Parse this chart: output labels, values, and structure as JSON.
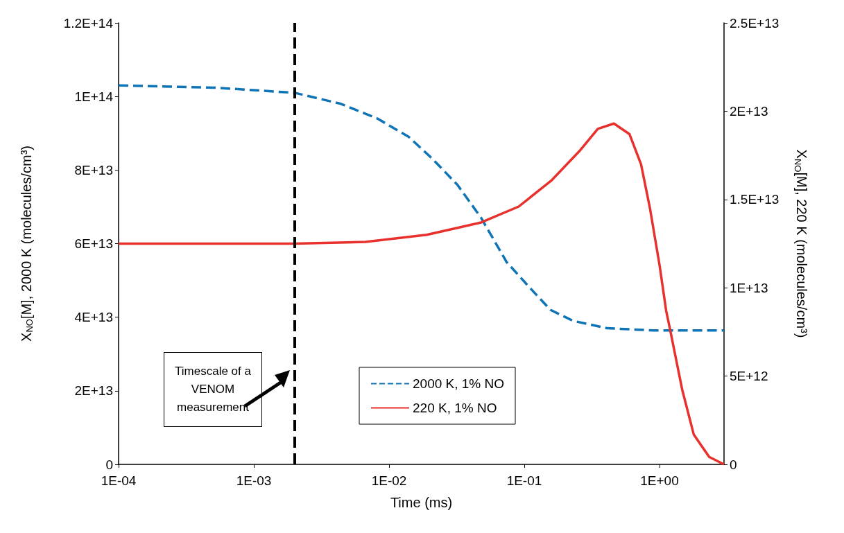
{
  "chart_data": {
    "type": "line",
    "xlabel": "Time (ms)",
    "ylabel": "X$_{NO}$[M], 2000 K (molecules/cm³)",
    "y2label": "X$_{NO}$[M], 220 K (molecules/cm³)",
    "log": "x",
    "grid": false,
    "legend": "bottom",
    "marker": "none",
    "xlim": [
      0.0001,
      3
    ],
    "xticks": [
      {
        "value": 0.0001,
        "label": "1E-04"
      },
      {
        "value": 0.001,
        "label": "1E-03"
      },
      {
        "value": 0.01,
        "label": "1E-02"
      },
      {
        "value": 0.1,
        "label": "1E-01"
      },
      {
        "value": 1,
        "label": "1E+00"
      }
    ],
    "ylim": [
      0,
      120000000000000.0
    ],
    "yticks": [
      0,
      {
        "value": 20000000000000.0,
        "label": "2E+13"
      },
      {
        "value": 40000000000000.0,
        "label": "4E+13"
      },
      {
        "value": 60000000000000.0,
        "label": "6E+13"
      },
      {
        "value": 80000000000000.0,
        "label": "8E+13"
      },
      {
        "value": 100000000000000.0,
        "label": "1E+14"
      },
      {
        "value": 120000000000000.0,
        "label": "1.2E+14"
      }
    ],
    "y2lim": [
      0,
      25000000000000.0
    ],
    "y2ticks": [
      0,
      {
        "value": 5000000000000.0,
        "label": "5E+12"
      },
      {
        "value": 10000000000000.0,
        "label": "1E+13"
      },
      {
        "value": 15000000000000.0,
        "label": "1.5E+13"
      },
      {
        "value": 20000000000000.0,
        "label": "2E+13"
      },
      {
        "value": 25000000000000.0,
        "label": "2.5E+13"
      }
    ],
    "series": [
      {
        "name": "2000 K, 1% NO",
        "color": "#0f74b6",
        "line_style": "dashed",
        "x": [
          0.0001,
          0.00051,
          0.002,
          0.0044,
          0.0082,
          0.014,
          0.021,
          0.032,
          0.048,
          0.074,
          0.11,
          0.156,
          0.23,
          0.41,
          0.92,
          3
        ],
        "values": [
          103000000000000.0,
          102400000000000.0,
          101000000000000.0,
          98000000000000.0,
          94000000000000.0,
          89000000000000.0,
          83000000000000.0,
          76000000000000.0,
          67000000000000.0,
          55000000000000.0,
          48000000000000.0,
          42000000000000.0,
          39000000000000.0,
          37000000000000.0,
          36400000000000.0,
          36400000000000.0
        ]
      },
      {
        "name": "220 K, 1% NO",
        "color": "#e8302d",
        "line_style": "solid",
        "axis": "y2",
        "x": [
          0.0001,
          0.002,
          0.0067,
          0.019,
          0.048,
          0.091,
          0.16,
          0.26,
          0.35,
          0.46,
          0.6,
          0.73,
          0.85,
          1.0,
          1.12,
          1.2,
          1.47,
          1.79,
          2.33,
          3
        ],
        "values": [
          12500000000000.0,
          12500000000000.0,
          12600000000000.0,
          13000000000000.0,
          13700000000000.0,
          14600000000000.0,
          16100000000000.0,
          17800000000000.0,
          19000000000000.0,
          19300000000000.0,
          18700000000000.0,
          17000000000000.0,
          14500000000000.0,
          11300000000000.0,
          8700000000000.0,
          7600000000000.0,
          4250000000000.0,
          1700000000000.0,
          420000000000.0,
          0
        ]
      }
    ],
    "ref_lines": [
      {
        "axis": "x",
        "value": 0.002,
        "color": "#000000",
        "line_style": "dashed"
      }
    ],
    "annotations": [
      "Timescale of a VENOM measurement"
    ]
  }
}
